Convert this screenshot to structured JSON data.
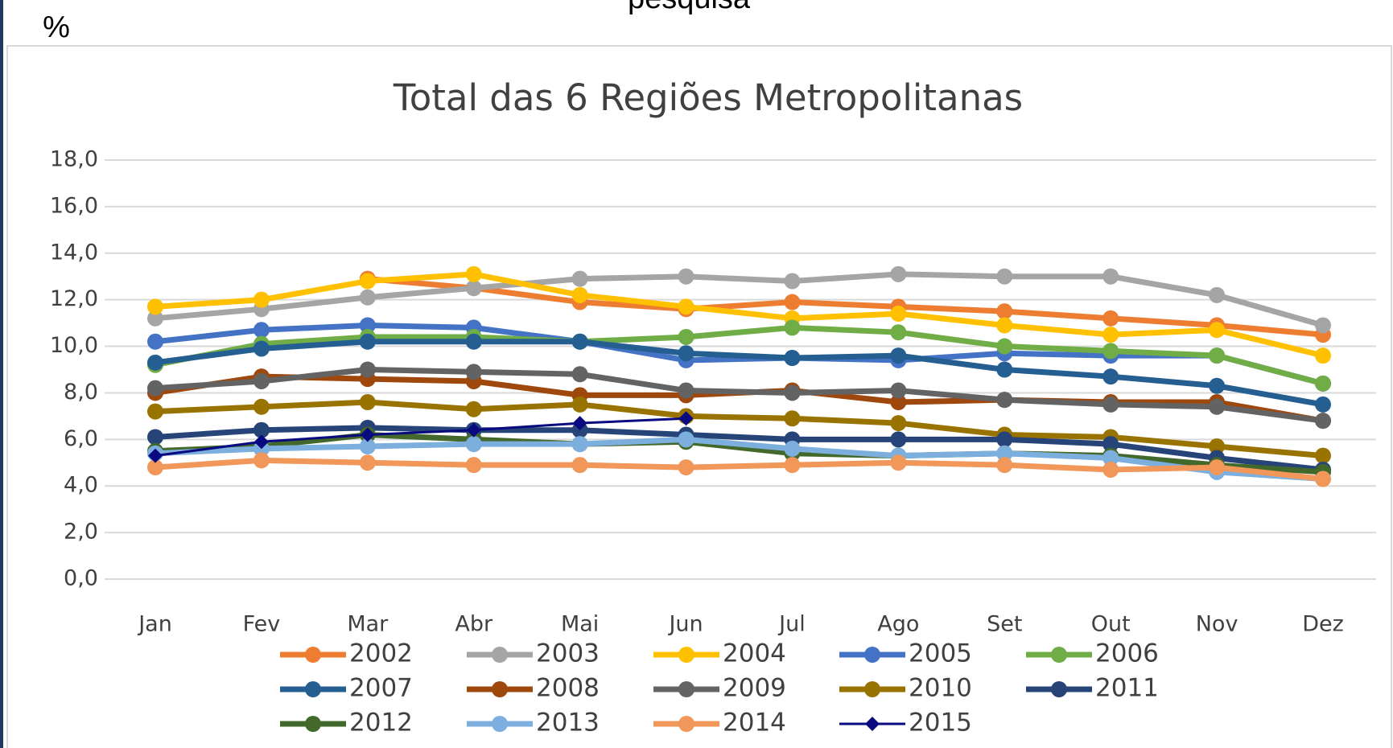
{
  "header": {
    "partial_text": "pesquisa",
    "unit": "%"
  },
  "chart_data": {
    "type": "line",
    "title": "Total das 6 Regiões Metropolitanas",
    "categories": [
      "Jan",
      "Fev",
      "Mar",
      "Abr",
      "Mai",
      "Jun",
      "Jul",
      "Ago",
      "Set",
      "Out",
      "Nov",
      "Dez"
    ],
    "ylim": [
      0,
      18
    ],
    "yticks": [
      {
        "value": 0,
        "label": "0,0"
      },
      {
        "value": 2,
        "label": "2,0"
      },
      {
        "value": 4,
        "label": "4,0"
      },
      {
        "value": 6,
        "label": "6,0"
      },
      {
        "value": 8,
        "label": "8,0"
      },
      {
        "value": 10,
        "label": "10,0"
      },
      {
        "value": 12,
        "label": "12,0"
      },
      {
        "value": 14,
        "label": "14,0"
      },
      {
        "value": 16,
        "label": "16,0"
      },
      {
        "value": 18,
        "label": "18,0"
      }
    ],
    "grid": true,
    "legend": "bottom",
    "series": [
      {
        "name": "2002",
        "color": "#ed7d31",
        "marker": "circle",
        "values": [
          null,
          null,
          12.9,
          12.5,
          11.9,
          11.6,
          11.9,
          11.7,
          11.5,
          11.2,
          10.9,
          10.5
        ]
      },
      {
        "name": "2003",
        "color": "#a5a5a5",
        "marker": "circle",
        "values": [
          11.2,
          11.6,
          12.1,
          12.5,
          12.9,
          13.0,
          12.8,
          13.1,
          13.0,
          13.0,
          12.2,
          10.9
        ]
      },
      {
        "name": "2004",
        "color": "#ffc000",
        "marker": "circle",
        "values": [
          11.7,
          12.0,
          12.8,
          13.1,
          12.2,
          11.7,
          11.2,
          11.4,
          10.9,
          10.5,
          10.7,
          9.6
        ]
      },
      {
        "name": "2005",
        "color": "#4472c4",
        "marker": "circle",
        "values": [
          10.2,
          10.7,
          10.9,
          10.8,
          10.2,
          9.4,
          9.5,
          9.4,
          9.7,
          9.6,
          9.6,
          8.4
        ]
      },
      {
        "name": "2006",
        "color": "#70ad47",
        "marker": "circle",
        "values": [
          9.2,
          10.1,
          10.4,
          10.4,
          10.2,
          10.4,
          10.8,
          10.6,
          10.0,
          9.8,
          9.6,
          8.4
        ]
      },
      {
        "name": "2007",
        "color": "#255e91",
        "marker": "circle",
        "values": [
          9.3,
          9.9,
          10.2,
          10.2,
          10.2,
          9.7,
          9.5,
          9.6,
          9.0,
          8.7,
          8.3,
          7.5
        ]
      },
      {
        "name": "2008",
        "color": "#9e480e",
        "marker": "circle",
        "values": [
          8.0,
          8.7,
          8.6,
          8.5,
          7.9,
          7.9,
          8.1,
          7.6,
          7.7,
          7.6,
          7.6,
          6.8
        ]
      },
      {
        "name": "2009",
        "color": "#636363",
        "marker": "circle",
        "values": [
          8.2,
          8.5,
          9.0,
          8.9,
          8.8,
          8.1,
          8.0,
          8.1,
          7.7,
          7.5,
          7.4,
          6.8
        ]
      },
      {
        "name": "2010",
        "color": "#997300",
        "marker": "circle",
        "values": [
          7.2,
          7.4,
          7.6,
          7.3,
          7.5,
          7.0,
          6.9,
          6.7,
          6.2,
          6.1,
          5.7,
          5.3
        ]
      },
      {
        "name": "2011",
        "color": "#264478",
        "marker": "circle",
        "values": [
          6.1,
          6.4,
          6.5,
          6.4,
          6.4,
          6.2,
          6.0,
          6.0,
          6.0,
          5.8,
          5.2,
          4.7
        ]
      },
      {
        "name": "2012",
        "color": "#43682b",
        "marker": "circle",
        "values": [
          5.5,
          5.7,
          6.2,
          6.0,
          5.8,
          5.9,
          5.4,
          5.3,
          5.4,
          5.3,
          4.9,
          4.6
        ]
      },
      {
        "name": "2013",
        "color": "#7cafdd",
        "marker": "circle",
        "values": [
          5.4,
          5.6,
          5.7,
          5.8,
          5.8,
          6.0,
          5.6,
          5.3,
          5.4,
          5.2,
          4.6,
          4.3
        ]
      },
      {
        "name": "2014",
        "color": "#f1975a",
        "marker": "circle",
        "values": [
          4.8,
          5.1,
          5.0,
          4.9,
          4.9,
          4.8,
          4.9,
          5.0,
          4.9,
          4.7,
          4.8,
          4.3
        ]
      },
      {
        "name": "2015",
        "color": "#0a0a80",
        "marker": "diamond",
        "values": [
          5.3,
          5.9,
          6.2,
          6.4,
          6.7,
          6.9,
          null,
          null,
          null,
          null,
          null,
          null
        ]
      }
    ]
  }
}
